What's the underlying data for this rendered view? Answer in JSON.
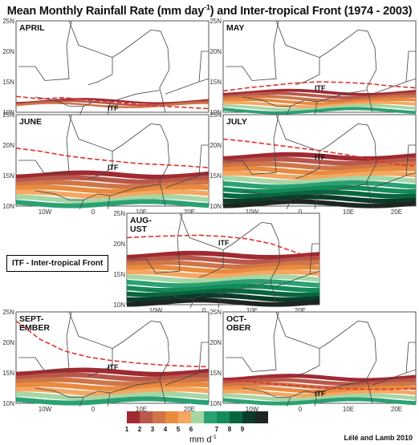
{
  "title": {
    "main": "Mean Monthly Rainfall Rate (mm day",
    "sup": "-1",
    "rest": ") and Inter-tropical Front (1974 - 2003)"
  },
  "legend_note": "ITF - Inter-tropical Front",
  "credit": "Lélé and Lamb 2010",
  "colorbar": {
    "unit_main": "mm d",
    "unit_sup": "-1",
    "ticks": [
      "1",
      "2",
      "3",
      "4",
      "5",
      "6",
      "7",
      "8",
      "9"
    ],
    "colors": [
      "#a02a32",
      "#b8574a",
      "#cf7548",
      "#e98a3e",
      "#f5a761",
      "#a6d6a6",
      "#2aa173",
      "#138b59",
      "#08663f",
      "#0b3b2a",
      "#1e2622"
    ]
  },
  "icons": {
    "front_line": "dashed-red-line"
  },
  "chart_data": [
    {
      "type": "heatmap",
      "month": "APRIL",
      "itf_label": "ITF",
      "lat_ticks": [
        "25N",
        "20N",
        "15N",
        "10N"
      ],
      "lon_ticks": [],
      "itf_latitude": [
        12.6,
        12.2,
        12.4,
        12.0,
        11.7,
        11.3,
        11.0,
        10.8,
        10.6
      ],
      "rain_band": [
        {
          "rate": 1,
          "north": 12,
          "south": 11
        }
      ]
    },
    {
      "type": "heatmap",
      "month": "MAY",
      "itf_label": "ITF",
      "lat_ticks": [
        "25N",
        "20N",
        "15N",
        "10N"
      ],
      "lon_ticks": [],
      "itf_latitude": [
        13.5,
        14.0,
        14.4,
        14.8,
        15.0,
        14.9,
        14.7,
        14.3,
        14.0
      ],
      "rain_band": [
        {
          "rate": 1,
          "north": 13.5,
          "south": 10
        }
      ]
    },
    {
      "type": "heatmap",
      "month": "JUNE",
      "itf_label": "ITF",
      "lat_ticks": [
        "25N",
        "20N",
        "15N",
        "10N"
      ],
      "lon_ticks": [
        "10W",
        "0",
        "10E",
        "20E"
      ],
      "itf_latitude": [
        19.5,
        19.0,
        18.3,
        17.8,
        17.4,
        17.0,
        16.8,
        16.6,
        16.3
      ],
      "rain_band": [
        {
          "rate": 1,
          "north": 15.5,
          "south": 10
        }
      ]
    },
    {
      "type": "heatmap",
      "month": "JULY",
      "itf_label": "ITF",
      "lat_ticks": [
        "25N",
        "20N",
        "15N",
        "10N"
      ],
      "lon_ticks": [
        "10W",
        "0",
        "10E",
        "20E"
      ],
      "itf_latitude": [
        21.0,
        20.6,
        20.1,
        19.6,
        19.1,
        18.5,
        17.8,
        17.0,
        16.5
      ],
      "rain_band": [
        {
          "rate": 1,
          "north": 18.5,
          "south": 10
        }
      ]
    },
    {
      "type": "heatmap",
      "month": "AUG-UST",
      "itf_label": "ITF",
      "lat_ticks": [
        "25N",
        "20N",
        "15N",
        "10N"
      ],
      "lon_ticks": [
        "10W",
        "0",
        "10E",
        "20E"
      ],
      "itf_latitude": [
        21.0,
        21.2,
        21.3,
        21.4,
        21.2,
        20.8,
        20.0,
        18.6,
        17.4
      ],
      "rain_band": [
        {
          "rate": 1,
          "north": 18.5,
          "south": 10
        }
      ]
    },
    {
      "type": "heatmap",
      "month": "SEPT-EMBER",
      "itf_label": "ITF",
      "lat_ticks": [
        "25N",
        "20N",
        "15N",
        "10N"
      ],
      "lon_ticks": [
        "10W",
        "0",
        "10E",
        "20E"
      ],
      "itf_latitude": [
        23.5,
        20.5,
        18.6,
        17.6,
        17.0,
        16.6,
        16.3,
        16.1,
        16.0
      ],
      "rain_band": [
        {
          "rate": 1,
          "north": 15.5,
          "south": 10
        }
      ]
    },
    {
      "type": "heatmap",
      "month": "OCT-OBER",
      "itf_label": "ITF",
      "lat_ticks": [
        "25N",
        "20N",
        "15N",
        "10N"
      ],
      "lon_ticks": [
        "10W",
        "0",
        "10E",
        "20E"
      ],
      "itf_latitude": [
        13.8,
        13.6,
        13.2,
        12.9,
        12.6,
        12.4,
        12.3,
        12.3,
        12.4
      ],
      "rain_band": [
        {
          "rate": 1,
          "north": 14.5,
          "south": 10
        }
      ]
    }
  ]
}
